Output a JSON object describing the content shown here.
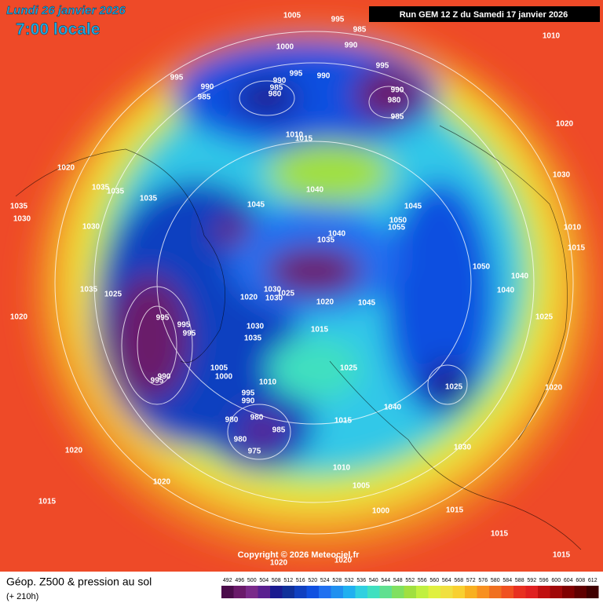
{
  "header": {
    "date": "Lundi 26 janvier 2026",
    "time": "7:00 locale",
    "run": "Run GEM 12 Z du Samedi 17 janvier 2026"
  },
  "footer": {
    "title": "Géop. Z500 & pression au sol",
    "lead": "(+ 210h)",
    "copyright": "Copyright © 2026 Meteociel.fr"
  },
  "isobar_labels": [
    1005,
    995,
    985,
    990,
    1010,
    1000,
    995,
    995,
    990,
    985,
    990,
    985,
    980,
    995,
    990,
    990,
    980,
    985,
    1020,
    1010,
    1015,
    1020,
    1030,
    1040,
    1035,
    1035,
    1035,
    1045,
    1045,
    1035,
    1030,
    1030,
    1050,
    1055,
    1040,
    1035,
    1010,
    1015,
    1050,
    1040,
    1040,
    1035,
    1025,
    1030,
    1030,
    1025,
    1020,
    1020,
    1045,
    995,
    1020,
    995,
    995,
    1030,
    1035,
    1015,
    1025,
    1005,
    1000,
    1010,
    1025,
    990,
    995,
    1020,
    1025,
    995,
    990,
    980,
    980,
    985,
    980,
    975,
    1040,
    1015,
    1030,
    1020,
    1020,
    1010,
    1005,
    1000,
    1015,
    1015,
    1015,
    1015,
    1020,
    1020
  ],
  "scale": {
    "ticks": [
      492,
      496,
      500,
      504,
      508,
      512,
      516,
      520,
      524,
      528,
      532,
      536,
      540,
      544,
      548,
      552,
      556,
      560,
      564,
      568,
      572,
      576,
      580,
      584,
      588,
      592,
      596,
      600,
      604,
      608,
      612
    ],
    "colors": [
      "#4b0c4b",
      "#6a1a6a",
      "#7a2a8a",
      "#5a2090",
      "#1a1a90",
      "#10309a",
      "#1040c0",
      "#1050e0",
      "#2070f0",
      "#2090f0",
      "#20b0f0",
      "#30d0e0",
      "#40e0c0",
      "#60e090",
      "#80e060",
      "#a0e040",
      "#c0f040",
      "#e0f040",
      "#f0e040",
      "#f8d030",
      "#f8b020",
      "#f89020",
      "#f07020",
      "#f05020",
      "#e83020",
      "#e02020",
      "#c01010",
      "#a00808",
      "#800000",
      "#600000",
      "#400000"
    ]
  }
}
